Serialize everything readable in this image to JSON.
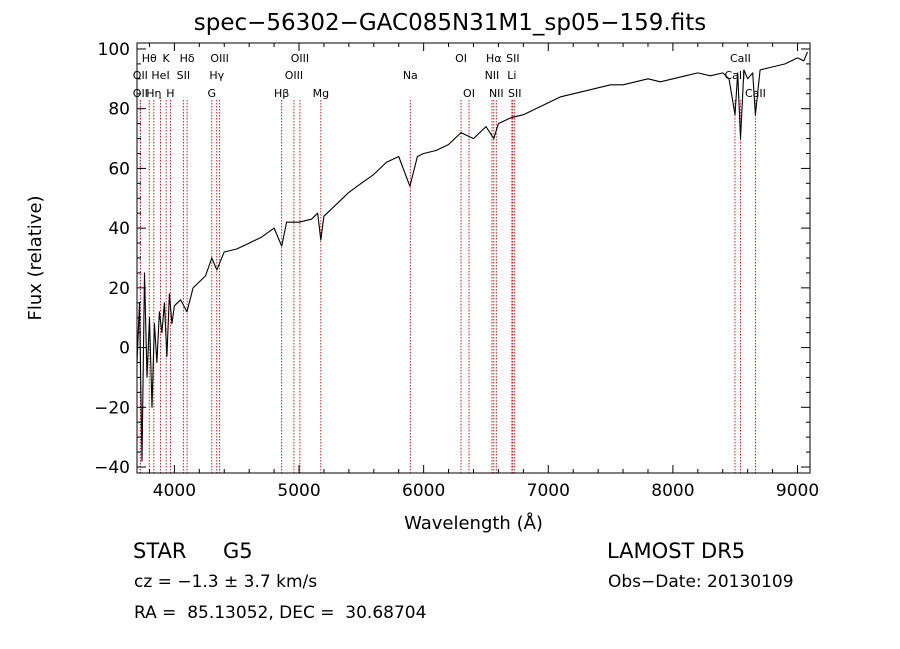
{
  "chart_data": {
    "type": "line",
    "title": "spec−56302−GAC085N31M1_sp05−159.fits",
    "xlabel": "Wavelength (Å)",
    "ylabel": "Flux (relative)",
    "xlim": [
      3700,
      9100
    ],
    "ylim": [
      -42,
      102
    ],
    "xticks": [
      4000,
      5000,
      6000,
      7000,
      8000,
      9000
    ],
    "yticks": [
      -40,
      -20,
      0,
      20,
      40,
      60,
      80,
      100
    ],
    "xtick_labels": [
      "4000",
      "5000",
      "6000",
      "7000",
      "8000",
      "9000"
    ],
    "ytick_labels": [
      "−40",
      "−20",
      "0",
      "20",
      "40",
      "60",
      "80",
      "100"
    ],
    "grid": false,
    "line_color": "#000000",
    "marker_color": "#cc0000",
    "series": [
      {
        "x": [
          3700,
          3720,
          3740,
          3760,
          3780,
          3800,
          3820,
          3840,
          3860,
          3880,
          3900,
          3920,
          3940,
          3960,
          3980,
          4000,
          4050,
          4100,
          4150,
          4200,
          4250,
          4300,
          4340,
          4400,
          4500,
          4600,
          4700,
          4800,
          4861,
          4900,
          5000,
          5100,
          5150,
          5175,
          5200,
          5300,
          5400,
          5500,
          5600,
          5700,
          5800,
          5890,
          5950,
          6000,
          6100,
          6200,
          6300,
          6400,
          6500,
          6563,
          6600,
          6700,
          6800,
          6900,
          7000,
          7100,
          7200,
          7300,
          7400,
          7500,
          7600,
          7700,
          7800,
          7900,
          8000,
          8100,
          8200,
          8300,
          8400,
          8450,
          8498,
          8520,
          8542,
          8570,
          8600,
          8640,
          8662,
          8700,
          8800,
          8900,
          9000,
          9050,
          9080
        ],
        "y": [
          -5,
          15,
          -38,
          25,
          -10,
          10,
          -20,
          8,
          -5,
          12,
          5,
          15,
          -3,
          18,
          8,
          14,
          16,
          12,
          20,
          22,
          24,
          30,
          26,
          32,
          33,
          35,
          37,
          40,
          34,
          42,
          42,
          43,
          45,
          36,
          44,
          48,
          52,
          55,
          58,
          62,
          64,
          54,
          64,
          65,
          66,
          68,
          72,
          70,
          74,
          70,
          75,
          77,
          78,
          80,
          82,
          84,
          85,
          86,
          87,
          88,
          88,
          89,
          90,
          89,
          90,
          91,
          92,
          91,
          92,
          90,
          78,
          92,
          70,
          93,
          90,
          92,
          78,
          93,
          94,
          95,
          97,
          96,
          99
        ]
      }
    ],
    "lines": [
      {
        "x": 3727,
        "label": "OII",
        "row": 2
      },
      {
        "x": 3727,
        "label": "OII",
        "row": 3
      },
      {
        "x": 3798,
        "label": "Hθ",
        "row": 1
      },
      {
        "x": 3835,
        "label": "Hη",
        "row": 3
      },
      {
        "x": 3889,
        "label": "HeI",
        "row": 2
      },
      {
        "x": 3934,
        "label": "K",
        "row": 1
      },
      {
        "x": 3968,
        "label": "H",
        "row": 3
      },
      {
        "x": 4072,
        "label": "SII",
        "row": 2
      },
      {
        "x": 4102,
        "label": "Hδ",
        "row": 1
      },
      {
        "x": 4300,
        "label": "G",
        "row": 3
      },
      {
        "x": 4340,
        "label": "Hγ",
        "row": 2
      },
      {
        "x": 4363,
        "label": "OIII",
        "row": 1
      },
      {
        "x": 4861,
        "label": "Hβ",
        "row": 3
      },
      {
        "x": 4959,
        "label": "OIII",
        "row": 2
      },
      {
        "x": 5007,
        "label": "OIII",
        "row": 1
      },
      {
        "x": 5175,
        "label": "Mg",
        "row": 3
      },
      {
        "x": 5893,
        "label": "Na",
        "row": 2
      },
      {
        "x": 6300,
        "label": "OI",
        "row": 1
      },
      {
        "x": 6364,
        "label": "OI",
        "row": 3
      },
      {
        "x": 6548,
        "label": "NII",
        "row": 2
      },
      {
        "x": 6563,
        "label": "Hα",
        "row": 1
      },
      {
        "x": 6583,
        "label": "NII",
        "row": 3
      },
      {
        "x": 6708,
        "label": "Li",
        "row": 2
      },
      {
        "x": 6716,
        "label": "SII",
        "row": 1
      },
      {
        "x": 6731,
        "label": "SII",
        "row": 3
      },
      {
        "x": 8498,
        "label": "CaII",
        "row": 2
      },
      {
        "x": 8542,
        "label": "CaII",
        "row": 1
      },
      {
        "x": 8662,
        "label": "CaII",
        "row": 3
      }
    ]
  },
  "footer": {
    "class": "STAR",
    "subclass": "G5",
    "source": "LAMOST DR5",
    "cz": "cz = −1.3 ± 3.7 km/s",
    "obs_date": "Obs−Date: 20130109",
    "radec": "RA =  85.13052, DEC =  30.68704"
  }
}
